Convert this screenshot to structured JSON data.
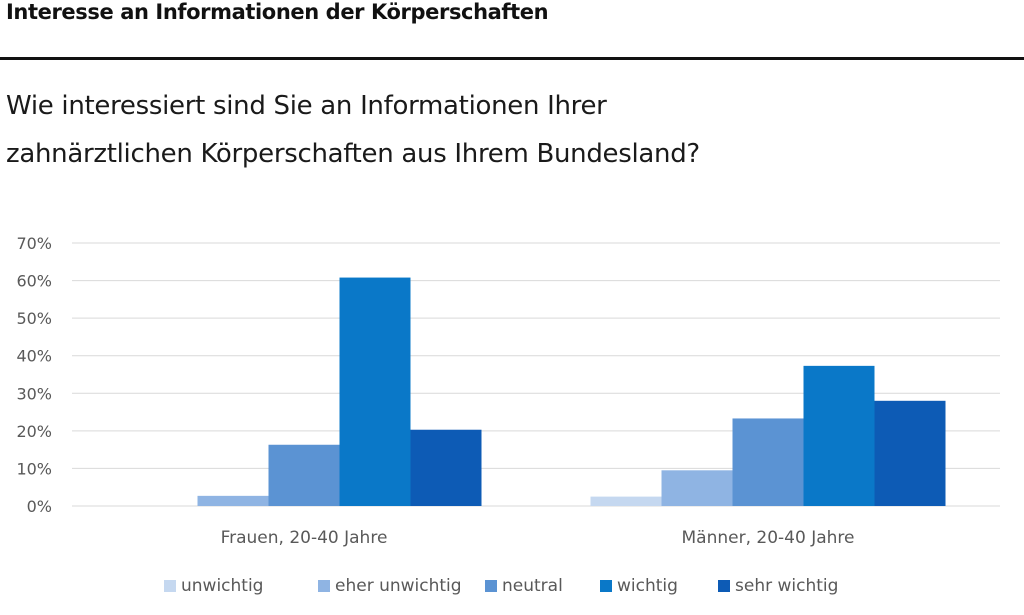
{
  "header": {
    "title": "Interesse an Informationen der Körperschaften"
  },
  "question": {
    "line1": "Wie interessiert sind Sie an Informationen Ihrer",
    "line2": "zahnärztlichen Körperschaften aus Ihrem Bundesland?"
  },
  "chart_data": {
    "type": "bar",
    "categories": [
      "Frauen, 20-40 Jahre",
      "Männer, 20-40 Jahre"
    ],
    "series": [
      {
        "name": "unwichtig",
        "color": "#c5d8f0",
        "values": [
          0,
          2.5
        ]
      },
      {
        "name": "eher unwichtig",
        "color": "#8fb4e3",
        "values": [
          2.7,
          9.5
        ]
      },
      {
        "name": "neutral",
        "color": "#5b93d3",
        "values": [
          16.3,
          23.3
        ]
      },
      {
        "name": "wichtig",
        "color": "#0a78c8",
        "values": [
          60.8,
          37.3
        ]
      },
      {
        "name": "sehr wichtig",
        "color": "#0d5bb5",
        "values": [
          20.3,
          28.0
        ]
      }
    ],
    "yticks": [
      "0%",
      "10%",
      "20%",
      "30%",
      "40%",
      "50%",
      "60%",
      "70%"
    ],
    "ylim": [
      0,
      70
    ],
    "grid": true,
    "legend_position": "bottom"
  }
}
